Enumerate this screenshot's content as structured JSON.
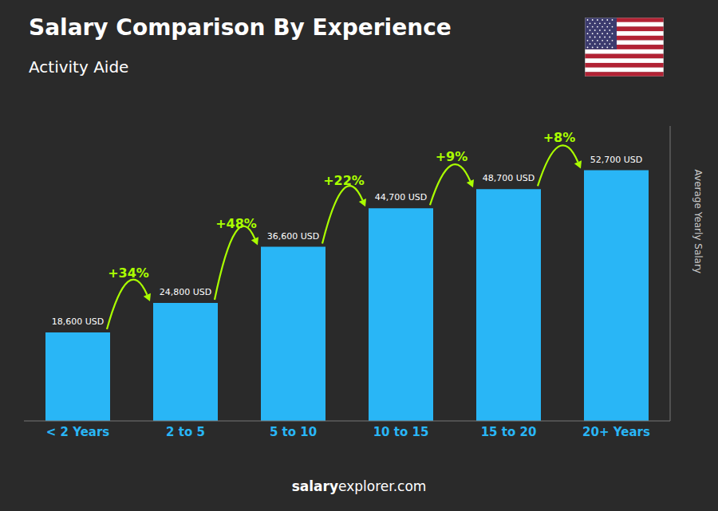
{
  "chart_data": {
    "type": "bar",
    "title": "Salary Comparison By Experience",
    "subtitle": "Activity Aide",
    "categories": [
      "< 2 Years",
      "2 to 5",
      "5 to 10",
      "10 to 15",
      "15 to 20",
      "20+ Years"
    ],
    "values": [
      18600,
      24800,
      36600,
      44700,
      48700,
      52700
    ],
    "value_labels": [
      "18,600 USD",
      "24,800 USD",
      "36,600 USD",
      "44,700 USD",
      "48,700 USD",
      "52,700 USD"
    ],
    "data_labels": true,
    "annotations": [
      "+34%",
      "+48%",
      "+22%",
      "+9%",
      "+8%"
    ],
    "ylabel": "Average Yearly Salary",
    "footer": [
      "salary",
      "explorer.com"
    ],
    "color": "#29b6f6",
    "ylim": [
      0,
      62000
    ],
    "grid": false,
    "tick_labels": "x"
  }
}
